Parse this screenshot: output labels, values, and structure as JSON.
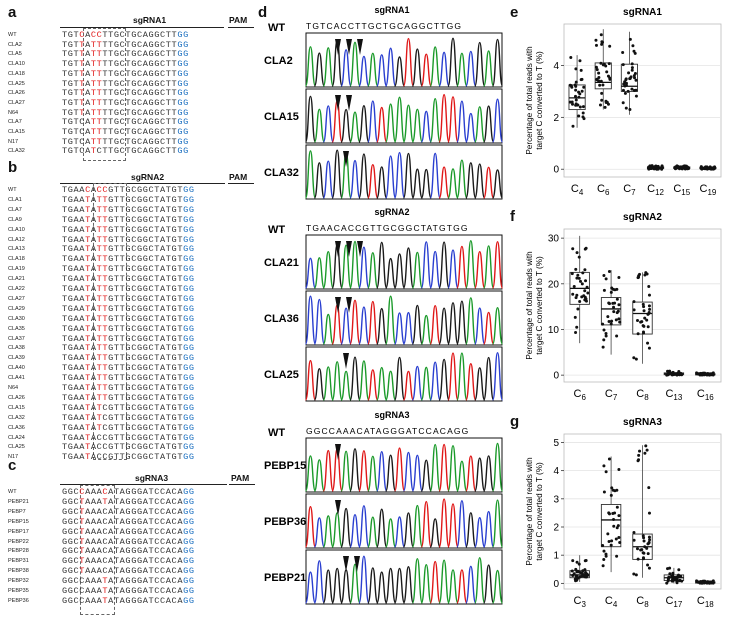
{
  "panels": {
    "a": {
      "letter": "a",
      "title": "sgRNA1",
      "pam": "PAM",
      "rows": [
        {
          "name": "WT",
          "seq": "TGTCACCTTGCTGCAGGCTTGG"
        },
        {
          "name": "CLA2",
          "seq": "TGTTATTTTGCTGCAGGCTTGG"
        },
        {
          "name": "CLA5",
          "seq": "TGTTATTTTGCTGCAGGCTTGG"
        },
        {
          "name": "CLA10",
          "seq": "TGTTATTTTGCTGCAGGCTTGG"
        },
        {
          "name": "CLA18",
          "seq": "TGTTATTTTGCTGCAGGCTTGG"
        },
        {
          "name": "CLA25",
          "seq": "TGTTATTTTGCTGCAGGCTTGG"
        },
        {
          "name": "CLA26",
          "seq": "TGTTATTTTGCTGCAGGCTTGG"
        },
        {
          "name": "CLA27",
          "seq": "TGTTATTTTGCTGCAGGCTTGG"
        },
        {
          "name": "N64",
          "seq": "TGTTATTTTGCTGCAGGCTTGG"
        },
        {
          "name": "CLA7",
          "seq": "TGTCATTTTGCTGCAGGCTTGG"
        },
        {
          "name": "CLA15",
          "seq": "TGTCATTTTGCTGCAGGCTTGG"
        },
        {
          "name": "N17",
          "seq": "TGTCATTTTGCTGCAGGCTTGG"
        },
        {
          "name": "CLA32",
          "seq": "TGTCATCTTGCTGCAGGCTTGG"
        }
      ]
    },
    "b": {
      "letter": "b",
      "title": "sgRNA2",
      "pam": "PAM",
      "rows": [
        {
          "name": "WT",
          "seq": "TGAACACCGTTGCGGCTATGTGG"
        },
        {
          "name": "CLA1",
          "seq": "TGAATATTGTTGCGGCTATGTGG"
        },
        {
          "name": "CLA7",
          "seq": "TGAATATTGTTGCGGCTATGTGG"
        },
        {
          "name": "CLA9",
          "seq": "TGAATATTGTTGCGGCTATGTGG"
        },
        {
          "name": "CLA10",
          "seq": "TGAATATTGTTGCGGCTATGTGG"
        },
        {
          "name": "CLA12",
          "seq": "TGAATATTGTTGCGGCTATGTGG"
        },
        {
          "name": "CLA13",
          "seq": "TGAATATTGTTGCGGCTATGTGG"
        },
        {
          "name": "CLA18",
          "seq": "TGAATATTGTTGCGGCTATGTGG"
        },
        {
          "name": "CLA19",
          "seq": "TGAATATTGTTGCGGCTATGTGG"
        },
        {
          "name": "CLA21",
          "seq": "TGAATATTGTTGCGGCTATGTGG"
        },
        {
          "name": "CLA22",
          "seq": "TGAATATTGTTGCGGCTATGTGG"
        },
        {
          "name": "CLA27",
          "seq": "TGAATATTGTTGCGGCTATGTGG"
        },
        {
          "name": "CLA29",
          "seq": "TGAATATTGTTGCGGCTATGTGG"
        },
        {
          "name": "CLA30",
          "seq": "TGAATATTGTTGCGGCTATGTGG"
        },
        {
          "name": "CLA35",
          "seq": "TGAATATTGTTGCGGCTATGTGG"
        },
        {
          "name": "CLA37",
          "seq": "TGAATATTGTTGCGGCTATGTGG"
        },
        {
          "name": "CLA38",
          "seq": "TGAATATTGTTGCGGCTATGTGG"
        },
        {
          "name": "CLA39",
          "seq": "TGAATATTGTTGCGGCTATGTGG"
        },
        {
          "name": "CLA40",
          "seq": "TGAATATTGTTGCGGCTATGTGG"
        },
        {
          "name": "CLA41",
          "seq": "TGAATATTGTTGCGGCTATGTGG"
        },
        {
          "name": "N64",
          "seq": "TGAATATTGTTGCGGCTATGTGG"
        },
        {
          "name": "CLA26",
          "seq": "TGAATATTGTTGCGGCTATGTGG"
        },
        {
          "name": "CLA15",
          "seq": "TGAATATCGTTGCGGCTATGTGG"
        },
        {
          "name": "CLA32",
          "seq": "TGAATATCGTTGCGGCTATGTGG"
        },
        {
          "name": "CLA36",
          "seq": "TGAATATCGTTGCGGCTATGTGG"
        },
        {
          "name": "CLA24",
          "seq": "TGAATACCGTTGCGGCTATGTGG"
        },
        {
          "name": "CLA25",
          "seq": "TGAATACCGTTGCGGCTATGTGG"
        },
        {
          "name": "N17",
          "seq": "TGAATACCGTTGCGGCTATGTGG"
        }
      ]
    },
    "c": {
      "letter": "c",
      "title": "sgRNA3",
      "pam": "PAM",
      "rows": [
        {
          "name": "WT",
          "seq": "GGCCAAACATAGGGATCCACAGG"
        },
        {
          "name": "PEBP21",
          "seq": "GGCTAAATATAGGGATCCACAGG"
        },
        {
          "name": "PEBP7",
          "seq": "GGCTAAACATAGGGATCCACAGG"
        },
        {
          "name": "PEBP15",
          "seq": "GGCTAAACATAGGGATCCACAGG"
        },
        {
          "name": "PEBP17",
          "seq": "GGCTAAACATAGGGATCCACAGG"
        },
        {
          "name": "PEBP22",
          "seq": "GGCTAAACATAGGGATCCACAGG"
        },
        {
          "name": "PEBP28",
          "seq": "GGCTAAACATAGGGATCCACAGG"
        },
        {
          "name": "PEBP31",
          "seq": "GGCTAAACATAGGGATCCACAGG"
        },
        {
          "name": "PEBP38",
          "seq": "GGCTAAACATAGGGATCCACAGG"
        },
        {
          "name": "PEBP32",
          "seq": "GGCCAAATATAGGGATCCACAGG"
        },
        {
          "name": "PEBP35",
          "seq": "GGCCAAATATAGGGATCCACAGG"
        },
        {
          "name": "PEBP36",
          "seq": "GGCCAAATATAGGGATCCACAGG"
        }
      ]
    },
    "d": {
      "letter": "d",
      "groups": [
        {
          "title": "sgRNA1",
          "wt_label": "WT",
          "wt_seq": "TGTCACCTTGCTGCAGGCTTGG",
          "traces": [
            {
              "label": "CLA2",
              "arrows": 3
            },
            {
              "label": "CLA15",
              "arrows": 2
            },
            {
              "label": "CLA32",
              "arrows": 1
            }
          ]
        },
        {
          "title": "sgRNA2",
          "wt_label": "WT",
          "wt_seq": "TGAACACCGTTGCGGCTATGTGG",
          "traces": [
            {
              "label": "CLA21",
              "arrows": 3
            },
            {
              "label": "CLA36",
              "arrows": 2
            },
            {
              "label": "CLA25",
              "arrows": 1
            }
          ]
        },
        {
          "title": "sgRNA3",
          "wt_label": "WT",
          "wt_seq": "GGCCAAACATAGGGATCCACAGG",
          "traces": [
            {
              "label": "PEBP15",
              "arrows": 1
            },
            {
              "label": "PEBP36",
              "arrows": 1
            },
            {
              "label": "PEBP21",
              "arrows": 2
            }
          ]
        }
      ]
    }
  },
  "colors": {
    "mutation": "#e01818",
    "pam": "#1a6fc0",
    "box_fill": "#ffffff",
    "box_line": "#333333"
  },
  "chart_data": [
    {
      "type": "box",
      "panel": "e",
      "title": "sgRNA1",
      "ylabel": "Percentage of total reads with target C converted to T (%)",
      "categories": [
        {
          "base": "C",
          "sub": "4"
        },
        {
          "base": "C",
          "sub": "6"
        },
        {
          "base": "C",
          "sub": "7"
        },
        {
          "base": "C",
          "sub": "12"
        },
        {
          "base": "C",
          "sub": "15"
        },
        {
          "base": "C",
          "sub": "19"
        }
      ],
      "yticks": [
        0,
        2,
        4
      ],
      "ylim": [
        -0.3,
        5.6
      ],
      "boxes": [
        {
          "q1": 2.3,
          "median": 2.75,
          "q3": 3.25,
          "low": 1.6,
          "high": 4.4
        },
        {
          "q1": 3.1,
          "median": 3.35,
          "q3": 4.1,
          "low": 2.3,
          "high": 5.4
        },
        {
          "q1": 3.0,
          "median": 3.2,
          "q3": 4.05,
          "low": 2.1,
          "high": 5.3
        },
        {
          "q1": 0.03,
          "median": 0.06,
          "q3": 0.09,
          "low": 0.0,
          "high": 0.14
        },
        {
          "q1": 0.03,
          "median": 0.06,
          "q3": 0.09,
          "low": 0.0,
          "high": 0.13
        },
        {
          "q1": 0.02,
          "median": 0.04,
          "q3": 0.07,
          "low": 0.0,
          "high": 0.1
        }
      ]
    },
    {
      "type": "box",
      "panel": "f",
      "title": "sgRNA2",
      "ylabel": "Percentage of total reads with target C converted to T (%)",
      "categories": [
        {
          "base": "C",
          "sub": "6"
        },
        {
          "base": "C",
          "sub": "7"
        },
        {
          "base": "C",
          "sub": "8"
        },
        {
          "base": "C",
          "sub": "13"
        },
        {
          "base": "C",
          "sub": "16"
        }
      ],
      "yticks": [
        0,
        10,
        20,
        30
      ],
      "ylim": [
        -1.5,
        32
      ],
      "boxes": [
        {
          "q1": 15.5,
          "median": 19.0,
          "q3": 22.5,
          "low": 7.0,
          "high": 30.5
        },
        {
          "q1": 11.0,
          "median": 14.5,
          "q3": 17.0,
          "low": 4.5,
          "high": 23.0
        },
        {
          "q1": 9.0,
          "median": 13.5,
          "q3": 16.0,
          "low": 2.5,
          "high": 22.5
        },
        {
          "q1": 0.1,
          "median": 0.3,
          "q3": 0.5,
          "low": 0.0,
          "high": 0.9
        },
        {
          "q1": 0.05,
          "median": 0.15,
          "q3": 0.3,
          "low": 0.0,
          "high": 0.5
        }
      ]
    },
    {
      "type": "box",
      "panel": "g",
      "title": "sgRNA3",
      "ylabel": "Percentage of total reads with target C converted to T (%)",
      "categories": [
        {
          "base": "C",
          "sub": "3"
        },
        {
          "base": "C",
          "sub": "4"
        },
        {
          "base": "C",
          "sub": "8"
        },
        {
          "base": "C",
          "sub": "17"
        },
        {
          "base": "C",
          "sub": "18"
        }
      ],
      "yticks": [
        0,
        1,
        2,
        3,
        4,
        5
      ],
      "ylim": [
        -0.2,
        5.3
      ],
      "boxes": [
        {
          "q1": 0.2,
          "median": 0.3,
          "q3": 0.45,
          "low": 0.05,
          "high": 1.0
        },
        {
          "q1": 1.3,
          "median": 2.25,
          "q3": 2.8,
          "low": 0.4,
          "high": 4.5
        },
        {
          "q1": 0.85,
          "median": 1.3,
          "q3": 1.75,
          "low": 0.2,
          "high": 4.9
        },
        {
          "q1": 0.1,
          "median": 0.2,
          "q3": 0.3,
          "low": 0.0,
          "high": 0.55
        },
        {
          "q1": 0.01,
          "median": 0.03,
          "q3": 0.05,
          "low": 0.0,
          "high": 0.09
        }
      ]
    }
  ]
}
